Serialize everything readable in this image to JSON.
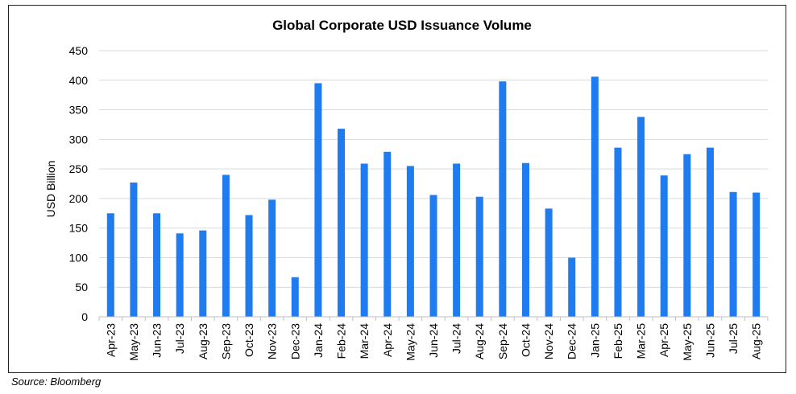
{
  "chart_data": {
    "type": "bar",
    "title": "Global Corporate USD Issuance Volume",
    "xlabel": "",
    "ylabel": "USD Billion",
    "ylim": [
      0,
      450
    ],
    "yticks": [
      0,
      50,
      100,
      150,
      200,
      250,
      300,
      350,
      400,
      450
    ],
    "grid": true,
    "bar_color": "#1F7BF0",
    "categories": [
      "Apr-23",
      "May-23",
      "Jun-23",
      "Jul-23",
      "Aug-23",
      "Sep-23",
      "Oct-23",
      "Nov-23",
      "Dec-23",
      "Jan-24",
      "Feb-24",
      "Mar-24",
      "Apr-24",
      "May-24",
      "Jun-24",
      "Jul-24",
      "Aug-24",
      "Sep-24",
      "Oct-24",
      "Nov-24",
      "Dec-24",
      "Jan-25",
      "Feb-25",
      "Mar-25",
      "Apr-25",
      "May-25",
      "Jun-25",
      "Jul-25",
      "Aug-25"
    ],
    "values": [
      175,
      227,
      175,
      141,
      146,
      240,
      172,
      198,
      67,
      395,
      318,
      259,
      279,
      255,
      206,
      259,
      203,
      398,
      260,
      183,
      100,
      406,
      286,
      338,
      239,
      275,
      286,
      211,
      210
    ]
  },
  "footer": {
    "source": "Source: Bloomberg"
  }
}
